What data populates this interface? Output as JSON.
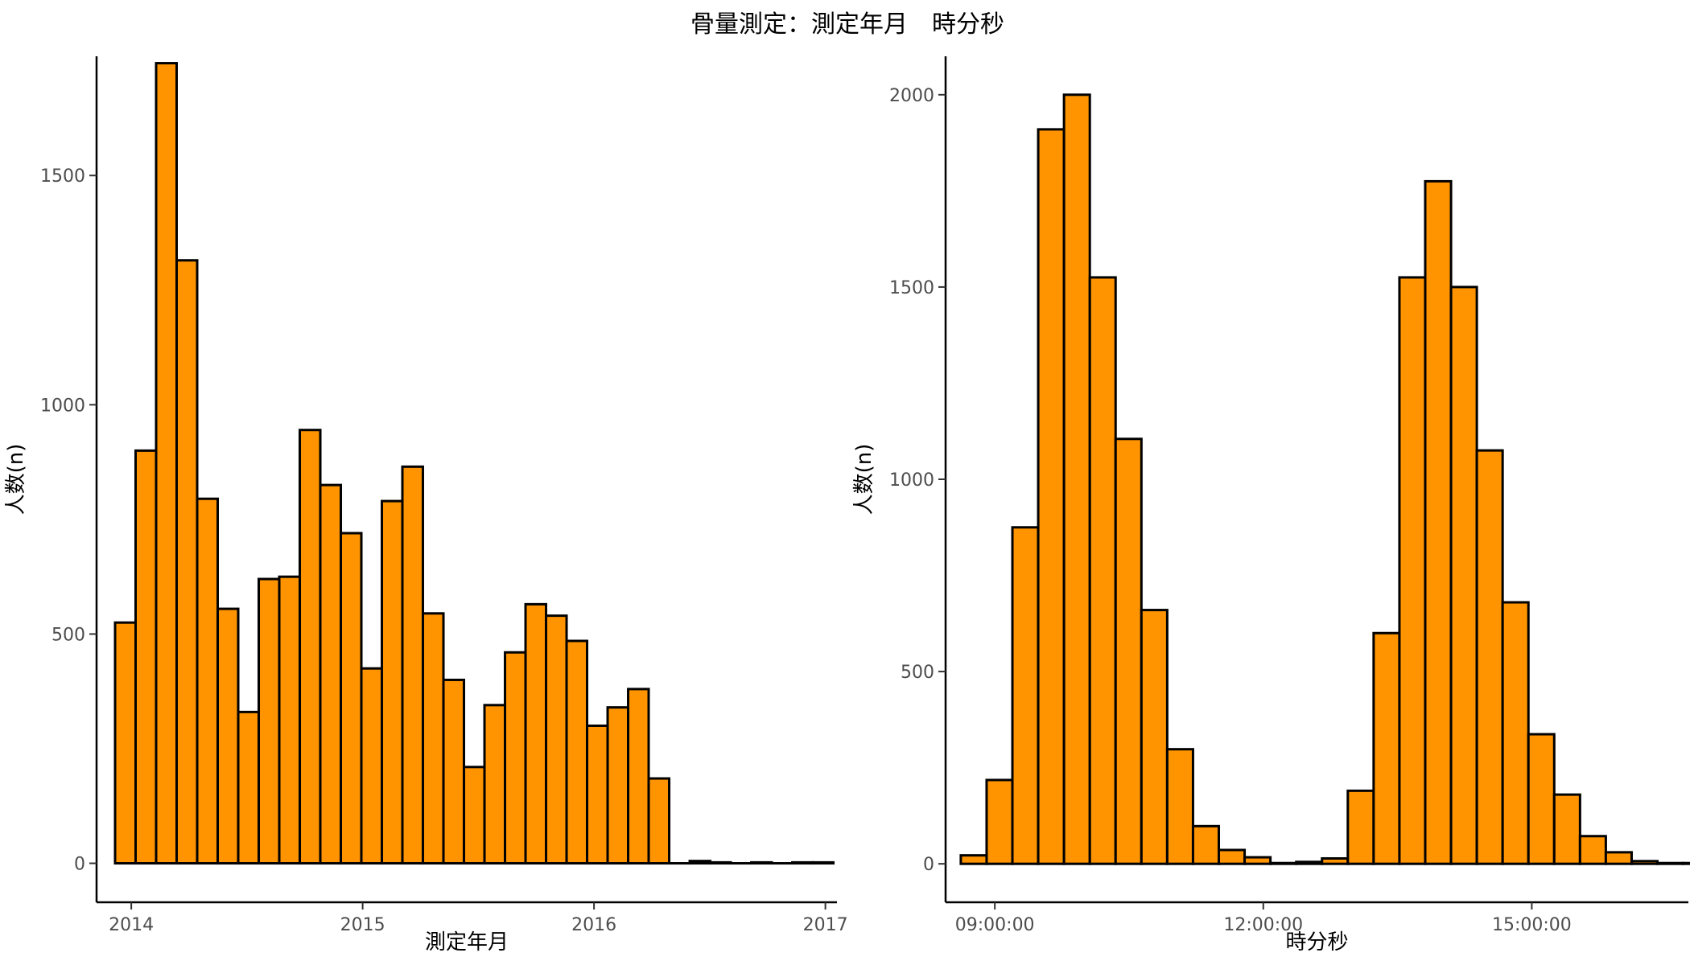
{
  "title": "骨量測定：測定年月　時分秒",
  "colors": {
    "bar_fill": "#FF9400",
    "bar_stroke": "#000000",
    "background": "#FFFFFF"
  },
  "chart_data": [
    {
      "type": "bar",
      "subtype": "histogram",
      "xlabel": "測定年月",
      "ylabel": "人数(n)",
      "xlim": [
        2013.85,
        2017.05
      ],
      "ylim": [
        -85,
        1760
      ],
      "xticks": [
        2014,
        2015,
        2016,
        2017
      ],
      "xtick_labels": [
        "2014",
        "2015",
        "2016",
        "2017"
      ],
      "yticks": [
        0,
        500,
        1000,
        1500
      ],
      "ytick_labels": [
        "0",
        "500",
        "1000",
        "1500"
      ],
      "bin_start": 2013.93,
      "bin_width": 0.0887,
      "values": [
        525,
        900,
        1745,
        1315,
        795,
        555,
        330,
        620,
        625,
        945,
        825,
        720,
        425,
        790,
        865,
        545,
        400,
        210,
        345,
        460,
        565,
        540,
        485,
        300,
        340,
        380,
        185,
        0,
        5,
        2,
        0,
        2,
        0,
        2,
        2
      ],
      "grid": false
    },
    {
      "type": "bar",
      "subtype": "histogram",
      "xlabel": "時分秒",
      "ylabel": "人数(n)",
      "xlim": [
        8.45,
        16.75
      ],
      "ylim": [
        -100,
        2100
      ],
      "xticks": [
        9,
        12,
        15
      ],
      "xtick_labels": [
        "09:00:00",
        "12:00:00",
        "15:00:00"
      ],
      "yticks": [
        0,
        500,
        1000,
        1500,
        2000
      ],
      "ytick_labels": [
        "0",
        "500",
        "1000",
        "1500",
        "2000"
      ],
      "bin_start": 8.62,
      "bin_width": 0.2883,
      "values": [
        22,
        218,
        875,
        1910,
        2000,
        1525,
        1105,
        660,
        298,
        98,
        36,
        17,
        2,
        5,
        14,
        190,
        600,
        1525,
        1775,
        1500,
        1075,
        680,
        337,
        180,
        72,
        30,
        7,
        2,
        2
      ],
      "grid": false
    }
  ]
}
